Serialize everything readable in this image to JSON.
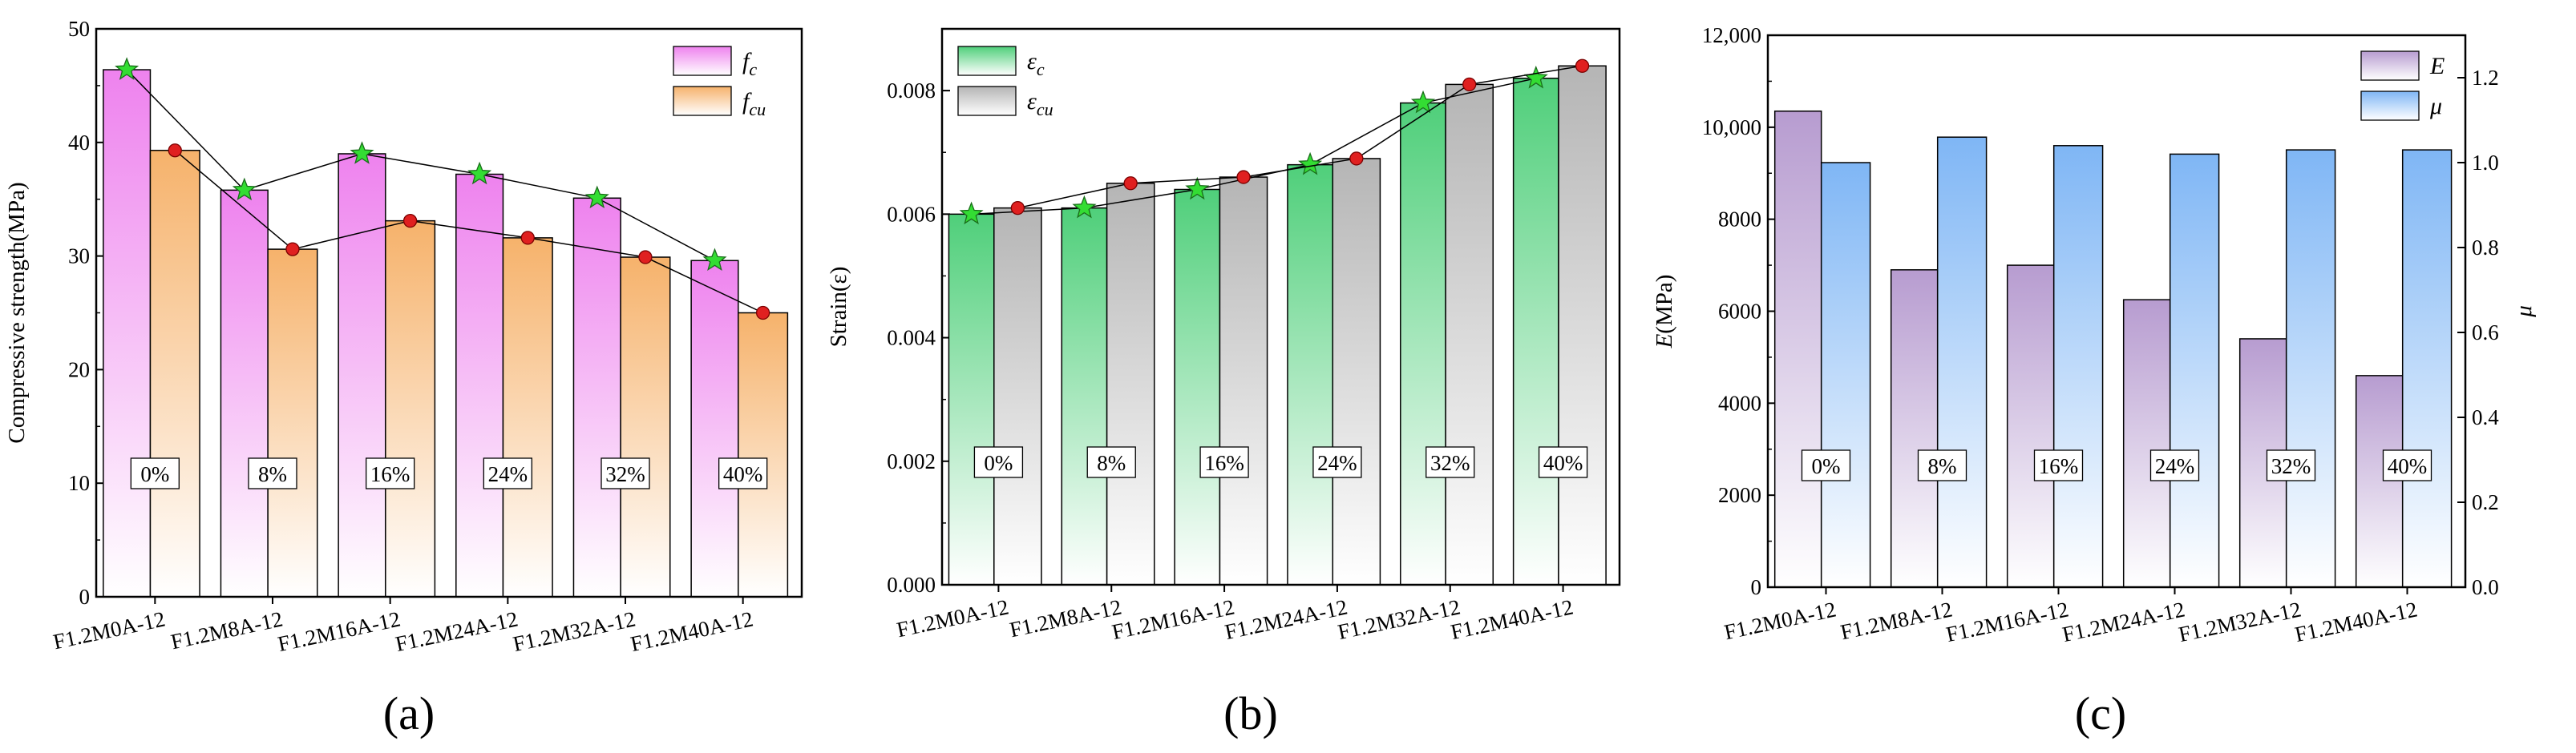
{
  "panel_labels": [
    "(a)",
    "(b)",
    "(c)"
  ],
  "chart_data": [
    {
      "type": "bar",
      "panel": "(a)",
      "categories": [
        "F1.2M0A-12",
        "F1.2M8A-12",
        "F1.2M16A-12",
        "F1.2M24A-12",
        "F1.2M32A-12",
        "F1.2M40A-12"
      ],
      "group_labels": [
        "0%",
        "8%",
        "16%",
        "24%",
        "32%",
        "40%"
      ],
      "ylabel": "Compressive strength(MPa)",
      "ylim": [
        0,
        50
      ],
      "yticks": [
        "0",
        "10",
        "20",
        "30",
        "40",
        "50"
      ],
      "series": [
        {
          "name": "f_c",
          "legend_base": "f",
          "legend_sub": "c",
          "values": [
            46.4,
            35.8,
            39.0,
            37.2,
            35.1,
            29.6
          ],
          "color_top": "#ee82ee",
          "color_bottom": "#ffffff",
          "marker": "star",
          "marker_color": "#33dd33"
        },
        {
          "name": "f_cu",
          "legend_base": "f",
          "legend_sub": "cu",
          "values": [
            39.3,
            30.6,
            33.1,
            31.6,
            29.9,
            25.0
          ],
          "color_top": "#f6b26b",
          "color_bottom": "#ffffff",
          "marker": "circle",
          "marker_color": "#e02020"
        }
      ]
    },
    {
      "type": "bar",
      "panel": "(b)",
      "categories": [
        "F1.2M0A-12",
        "F1.2M8A-12",
        "F1.2M16A-12",
        "F1.2M24A-12",
        "F1.2M32A-12",
        "F1.2M40A-12"
      ],
      "group_labels": [
        "0%",
        "8%",
        "16%",
        "24%",
        "32%",
        "40%"
      ],
      "ylabel": "Strain(ε)",
      "ylim": [
        0,
        0.009
      ],
      "yticks": [
        "0.000",
        "0.002",
        "0.004",
        "0.006",
        "0.008"
      ],
      "series": [
        {
          "name": "ε_c",
          "legend_base": "ε",
          "legend_sub": "c",
          "values": [
            0.006,
            0.0061,
            0.0064,
            0.0068,
            0.0078,
            0.0082
          ],
          "color_top": "#4fcf7a",
          "color_bottom": "#ffffff",
          "marker": "star",
          "marker_color": "#33dd33"
        },
        {
          "name": "ε_cu",
          "legend_base": "ε",
          "legend_sub": "cu",
          "values": [
            0.0061,
            0.0065,
            0.0066,
            0.0069,
            0.0081,
            0.0084
          ],
          "color_top": "#b5b5b5",
          "color_bottom": "#ffffff",
          "marker": "circle",
          "marker_color": "#e02020"
        }
      ]
    },
    {
      "type": "bar",
      "panel": "(c)",
      "categories": [
        "F1.2M0A-12",
        "F1.2M8A-12",
        "F1.2M16A-12",
        "F1.2M24A-12",
        "F1.2M32A-12",
        "F1.2M40A-12"
      ],
      "group_labels": [
        "0%",
        "8%",
        "16%",
        "24%",
        "32%",
        "40%"
      ],
      "ylabel": "E(MPa)",
      "ylabel_base": "E",
      "ylabel_unit": "(MPa)",
      "ylim": [
        0,
        12000
      ],
      "yticks": [
        "0",
        "2000",
        "4000",
        "6000",
        "8000",
        "10,000",
        "12,000"
      ],
      "y2label": "μ",
      "y2lim": [
        0,
        1.3
      ],
      "y2ticks": [
        "0.0",
        "0.2",
        "0.4",
        "0.6",
        "0.8",
        "1.0",
        "1.2"
      ],
      "series": [
        {
          "name": "E",
          "legend_base": "E",
          "legend_sub": "",
          "axis": "left",
          "values": [
            10350,
            6900,
            7000,
            6250,
            5400,
            4600
          ],
          "color_top": "#b79cd0",
          "color_bottom": "#ffffff"
        },
        {
          "name": "μ",
          "legend_base": "μ",
          "legend_sub": "",
          "axis": "right",
          "values": [
            1.0,
            1.06,
            1.04,
            1.02,
            1.03,
            1.03
          ],
          "color_top": "#7fb6f5",
          "color_bottom": "#ffffff"
        }
      ]
    }
  ]
}
